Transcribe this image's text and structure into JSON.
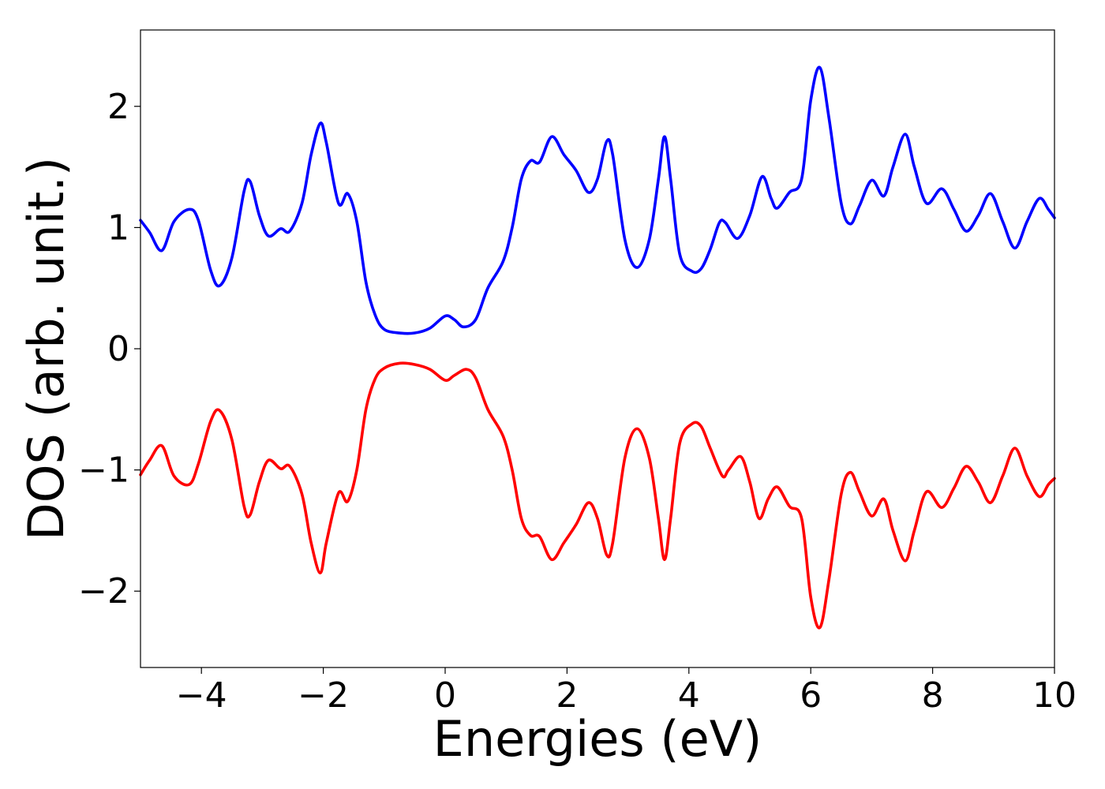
{
  "chart_data": {
    "type": "line",
    "title": "",
    "xlabel": "Energies (eV)",
    "ylabel": "DOS (arb. unit.)",
    "xlim": [
      -5,
      10
    ],
    "ylim": [
      -2.63,
      2.63
    ],
    "grid": false,
    "legend": "none",
    "x_ticks": [
      {
        "value": -4,
        "label": "−4"
      },
      {
        "value": -2,
        "label": "−2"
      },
      {
        "value": 0,
        "label": "0"
      },
      {
        "value": 2,
        "label": "2"
      },
      {
        "value": 4,
        "label": "4"
      },
      {
        "value": 6,
        "label": "6"
      },
      {
        "value": 8,
        "label": "8"
      },
      {
        "value": 10,
        "label": "10"
      }
    ],
    "y_ticks": [
      {
        "value": -2,
        "label": "−2"
      },
      {
        "value": -1,
        "label": "−1"
      },
      {
        "value": 0,
        "label": "0"
      },
      {
        "value": 1,
        "label": "1"
      },
      {
        "value": 2,
        "label": "2"
      }
    ],
    "series": [
      {
        "color": "#0000ff",
        "points": [
          [
            -5.0,
            1.06
          ],
          [
            -4.85,
            0.96
          ],
          [
            -4.65,
            0.81
          ],
          [
            -4.45,
            1.05
          ],
          [
            -4.2,
            1.15
          ],
          [
            -4.05,
            1.06
          ],
          [
            -3.85,
            0.65
          ],
          [
            -3.7,
            0.52
          ],
          [
            -3.5,
            0.75
          ],
          [
            -3.3,
            1.3
          ],
          [
            -3.2,
            1.38
          ],
          [
            -3.05,
            1.1
          ],
          [
            -2.9,
            0.93
          ],
          [
            -2.7,
            0.99
          ],
          [
            -2.55,
            0.97
          ],
          [
            -2.35,
            1.2
          ],
          [
            -2.2,
            1.6
          ],
          [
            -2.05,
            1.86
          ],
          [
            -1.95,
            1.7
          ],
          [
            -1.75,
            1.2
          ],
          [
            -1.6,
            1.28
          ],
          [
            -1.45,
            1.05
          ],
          [
            -1.3,
            0.55
          ],
          [
            -1.15,
            0.28
          ],
          [
            -1.0,
            0.16
          ],
          [
            -0.75,
            0.13
          ],
          [
            -0.5,
            0.13
          ],
          [
            -0.25,
            0.17
          ],
          [
            0.0,
            0.27
          ],
          [
            0.15,
            0.24
          ],
          [
            0.3,
            0.18
          ],
          [
            0.5,
            0.24
          ],
          [
            0.7,
            0.5
          ],
          [
            0.95,
            0.72
          ],
          [
            1.1,
            1.0
          ],
          [
            1.25,
            1.4
          ],
          [
            1.4,
            1.55
          ],
          [
            1.55,
            1.54
          ],
          [
            1.75,
            1.75
          ],
          [
            1.95,
            1.6
          ],
          [
            2.15,
            1.47
          ],
          [
            2.35,
            1.29
          ],
          [
            2.5,
            1.4
          ],
          [
            2.65,
            1.71
          ],
          [
            2.75,
            1.6
          ],
          [
            2.95,
            0.9
          ],
          [
            3.15,
            0.67
          ],
          [
            3.35,
            0.9
          ],
          [
            3.5,
            1.4
          ],
          [
            3.6,
            1.75
          ],
          [
            3.7,
            1.4
          ],
          [
            3.85,
            0.78
          ],
          [
            4.05,
            0.64
          ],
          [
            4.2,
            0.66
          ],
          [
            4.35,
            0.82
          ],
          [
            4.5,
            1.04
          ],
          [
            4.6,
            1.04
          ],
          [
            4.8,
            0.91
          ],
          [
            5.0,
            1.1
          ],
          [
            5.2,
            1.42
          ],
          [
            5.35,
            1.24
          ],
          [
            5.45,
            1.16
          ],
          [
            5.65,
            1.29
          ],
          [
            5.85,
            1.4
          ],
          [
            6.0,
            2.05
          ],
          [
            6.15,
            2.32
          ],
          [
            6.3,
            1.9
          ],
          [
            6.5,
            1.2
          ],
          [
            6.65,
            1.03
          ],
          [
            6.8,
            1.18
          ],
          [
            7.0,
            1.39
          ],
          [
            7.2,
            1.26
          ],
          [
            7.35,
            1.5
          ],
          [
            7.55,
            1.77
          ],
          [
            7.7,
            1.5
          ],
          [
            7.9,
            1.2
          ],
          [
            8.15,
            1.32
          ],
          [
            8.35,
            1.15
          ],
          [
            8.55,
            0.97
          ],
          [
            8.75,
            1.1
          ],
          [
            8.95,
            1.28
          ],
          [
            9.15,
            1.05
          ],
          [
            9.35,
            0.83
          ],
          [
            9.55,
            1.05
          ],
          [
            9.75,
            1.24
          ],
          [
            9.9,
            1.15
          ],
          [
            10.0,
            1.08
          ]
        ]
      },
      {
        "color": "#ff0000",
        "points": [
          [
            -5.0,
            -1.04
          ],
          [
            -4.85,
            -0.92
          ],
          [
            -4.65,
            -0.8
          ],
          [
            -4.45,
            -1.05
          ],
          [
            -4.2,
            -1.12
          ],
          [
            -4.05,
            -0.95
          ],
          [
            -3.85,
            -0.6
          ],
          [
            -3.7,
            -0.51
          ],
          [
            -3.5,
            -0.75
          ],
          [
            -3.3,
            -1.3
          ],
          [
            -3.2,
            -1.37
          ],
          [
            -3.05,
            -1.1
          ],
          [
            -2.9,
            -0.92
          ],
          [
            -2.7,
            -0.99
          ],
          [
            -2.55,
            -0.97
          ],
          [
            -2.35,
            -1.2
          ],
          [
            -2.2,
            -1.6
          ],
          [
            -2.05,
            -1.85
          ],
          [
            -1.95,
            -1.6
          ],
          [
            -1.75,
            -1.19
          ],
          [
            -1.6,
            -1.26
          ],
          [
            -1.45,
            -1.0
          ],
          [
            -1.3,
            -0.5
          ],
          [
            -1.15,
            -0.25
          ],
          [
            -1.0,
            -0.16
          ],
          [
            -0.75,
            -0.12
          ],
          [
            -0.5,
            -0.13
          ],
          [
            -0.25,
            -0.17
          ],
          [
            0.0,
            -0.26
          ],
          [
            0.15,
            -0.22
          ],
          [
            0.35,
            -0.17
          ],
          [
            0.5,
            -0.24
          ],
          [
            0.7,
            -0.5
          ],
          [
            0.95,
            -0.72
          ],
          [
            1.1,
            -1.0
          ],
          [
            1.25,
            -1.4
          ],
          [
            1.4,
            -1.54
          ],
          [
            1.55,
            -1.55
          ],
          [
            1.75,
            -1.74
          ],
          [
            1.95,
            -1.6
          ],
          [
            2.15,
            -1.45
          ],
          [
            2.35,
            -1.27
          ],
          [
            2.5,
            -1.4
          ],
          [
            2.65,
            -1.7
          ],
          [
            2.75,
            -1.6
          ],
          [
            2.95,
            -0.9
          ],
          [
            3.15,
            -0.66
          ],
          [
            3.35,
            -0.9
          ],
          [
            3.5,
            -1.4
          ],
          [
            3.6,
            -1.74
          ],
          [
            3.7,
            -1.4
          ],
          [
            3.85,
            -0.78
          ],
          [
            4.05,
            -0.62
          ],
          [
            4.2,
            -0.64
          ],
          [
            4.35,
            -0.82
          ],
          [
            4.55,
            -1.05
          ],
          [
            4.65,
            -1.0
          ],
          [
            4.85,
            -0.89
          ],
          [
            5.0,
            -1.1
          ],
          [
            5.15,
            -1.4
          ],
          [
            5.3,
            -1.24
          ],
          [
            5.45,
            -1.14
          ],
          [
            5.65,
            -1.3
          ],
          [
            5.85,
            -1.4
          ],
          [
            6.0,
            -2.05
          ],
          [
            6.15,
            -2.3
          ],
          [
            6.3,
            -1.9
          ],
          [
            6.5,
            -1.2
          ],
          [
            6.65,
            -1.02
          ],
          [
            6.8,
            -1.18
          ],
          [
            7.0,
            -1.38
          ],
          [
            7.2,
            -1.24
          ],
          [
            7.35,
            -1.5
          ],
          [
            7.55,
            -1.75
          ],
          [
            7.7,
            -1.5
          ],
          [
            7.9,
            -1.18
          ],
          [
            8.15,
            -1.31
          ],
          [
            8.35,
            -1.15
          ],
          [
            8.55,
            -0.97
          ],
          [
            8.75,
            -1.1
          ],
          [
            8.95,
            -1.27
          ],
          [
            9.15,
            -1.05
          ],
          [
            9.35,
            -0.82
          ],
          [
            9.55,
            -1.05
          ],
          [
            9.75,
            -1.22
          ],
          [
            9.9,
            -1.12
          ],
          [
            10.0,
            -1.07
          ]
        ]
      }
    ]
  }
}
